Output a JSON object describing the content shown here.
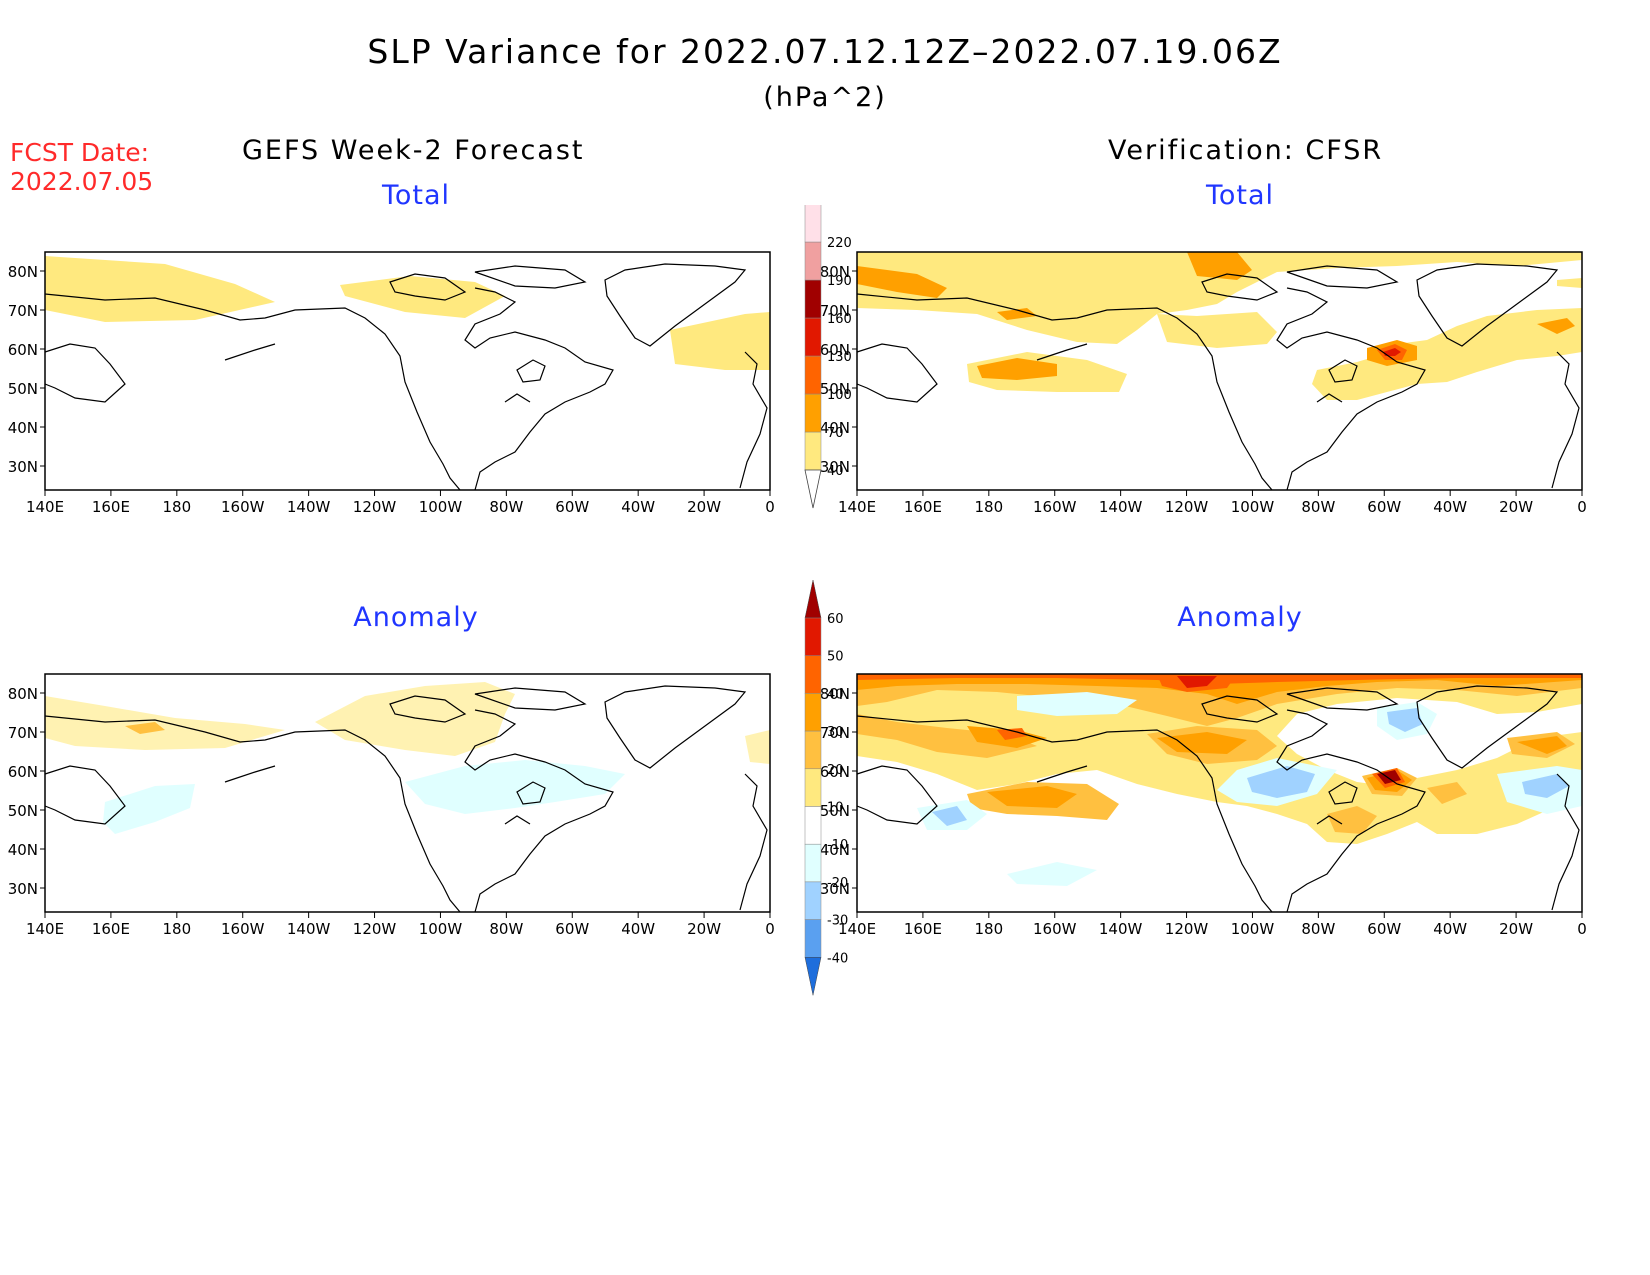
{
  "header": {
    "title": "SLP Variance for 2022.07.12.12Z–2022.07.19.06Z",
    "units": "(hPa^2)",
    "fcst_label": "FCST Date:",
    "fcst_date": "2022.07.05"
  },
  "columns": {
    "left": "GEFS Week-2 Forecast",
    "right": "Verification: CFSR"
  },
  "panels": {
    "top_left": "Total",
    "top_right": "Total",
    "bottom_left": "Anomaly",
    "bottom_right": "Anomaly"
  },
  "axes": {
    "lon_ticks": [
      "140E",
      "160E",
      "180",
      "160W",
      "140W",
      "120W",
      "100W",
      "80W",
      "60W",
      "40W",
      "20W",
      "0"
    ],
    "lat_ticks": [
      "80N",
      "70N",
      "60N",
      "50N",
      "40N",
      "30N"
    ]
  },
  "colorbar_total": {
    "labels": [
      "40",
      "70",
      "100",
      "130",
      "160",
      "190",
      "220"
    ],
    "colors": [
      "#ffe97f",
      "#ffa000",
      "#ff6400",
      "#e11800",
      "#a00000",
      "#f0a0a0",
      "#ffe0e8"
    ]
  },
  "colorbar_anomaly": {
    "labels": [
      "60",
      "50",
      "40",
      "30",
      "20",
      "10",
      "-10",
      "-20",
      "-30",
      "-40"
    ],
    "colors": [
      "#a00000",
      "#e11800",
      "#ff6400",
      "#ffa000",
      "#ffc040",
      "#ffe97f",
      "#ffffff",
      "#e0ffff",
      "#a0d2ff",
      "#5aa0f0",
      "#1e6edc"
    ]
  },
  "colors": {
    "c40": "#ffe97f",
    "c70": "#ffa000",
    "c100": "#ff6400",
    "c130": "#e11800",
    "neg10": "#e0ffff",
    "neg20": "#a0d2ff",
    "title_blue": "#2036ff",
    "fcst_red": "#ff2a2a"
  }
}
